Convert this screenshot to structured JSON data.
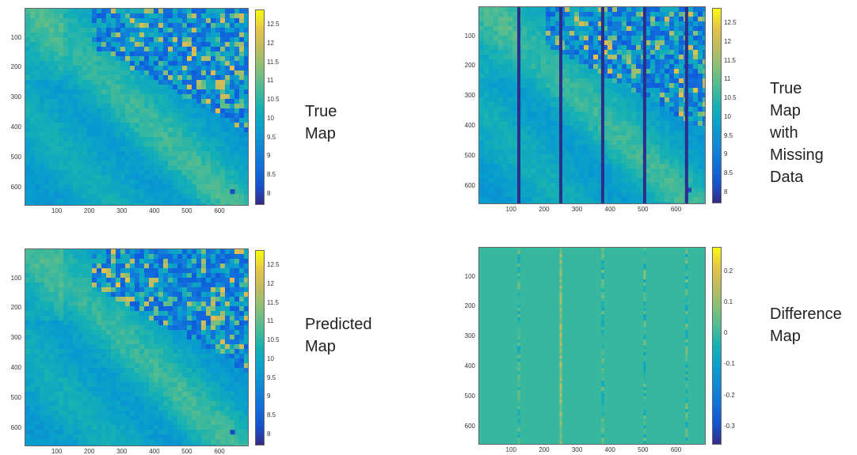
{
  "chart_data": [
    {
      "type": "heatmap",
      "label_lines": [
        "True",
        "Map"
      ],
      "xticks": [
        100,
        200,
        300,
        400,
        500,
        600
      ],
      "yticks": [
        100,
        200,
        300,
        400,
        500,
        600
      ],
      "xlim": [
        1,
        690
      ],
      "ylim": [
        1,
        660
      ],
      "colorbar_ticks": [
        "12.5",
        "12",
        "11.5",
        "11",
        "10.5",
        "10",
        "9.5",
        "9",
        "8.5",
        "8"
      ],
      "clim": [
        7.7,
        12.9
      ],
      "colormap": "parula",
      "missing_columns": []
    },
    {
      "type": "heatmap",
      "label_lines": [
        "True",
        "Map",
        "with",
        "Missing",
        "Data"
      ],
      "xticks": [
        100,
        200,
        300,
        400,
        500,
        600
      ],
      "yticks": [
        100,
        200,
        300,
        400,
        500,
        600
      ],
      "xlim": [
        1,
        690
      ],
      "ylim": [
        1,
        660
      ],
      "colorbar_ticks": [
        "12.5",
        "12",
        "11.5",
        "11",
        "10.5",
        "10",
        "9.5",
        "9",
        "8.5",
        "8"
      ],
      "clim": [
        7.7,
        12.9
      ],
      "colormap": "parula",
      "missing_columns": [
        122,
        250,
        378,
        506,
        634
      ]
    },
    {
      "type": "heatmap",
      "label_lines": [
        "Predicted",
        "Map"
      ],
      "xticks": [
        100,
        200,
        300,
        400,
        500,
        600
      ],
      "yticks": [
        100,
        200,
        300,
        400,
        500,
        600
      ],
      "xlim": [
        1,
        690
      ],
      "ylim": [
        1,
        660
      ],
      "colorbar_ticks": [
        "12.5",
        "12",
        "11.5",
        "11",
        "10.5",
        "10",
        "9.5",
        "9",
        "8.5",
        "8"
      ],
      "clim": [
        7.7,
        12.9
      ],
      "colormap": "parula",
      "missing_columns": []
    },
    {
      "type": "heatmap",
      "label_lines": [
        "Difference",
        "Map"
      ],
      "xticks": [
        100,
        200,
        300,
        400,
        500,
        600
      ],
      "yticks": [
        100,
        200,
        300,
        400,
        500,
        600
      ],
      "xlim": [
        1,
        690
      ],
      "ylim": [
        1,
        660
      ],
      "colorbar_ticks": [
        "0.2",
        "0.1",
        "0",
        "-0.1",
        "-0.2",
        "-0.3"
      ],
      "clim": [
        -0.36,
        0.28
      ],
      "colormap": "parula",
      "difference_columns": [
        122,
        250,
        378,
        506,
        634
      ]
    }
  ],
  "colors": {
    "parula_low": "#352a87",
    "parula_mid": "#12b2a8",
    "parula_high": "#f9fb0e",
    "missing_stripe": "#2c2f8a"
  }
}
